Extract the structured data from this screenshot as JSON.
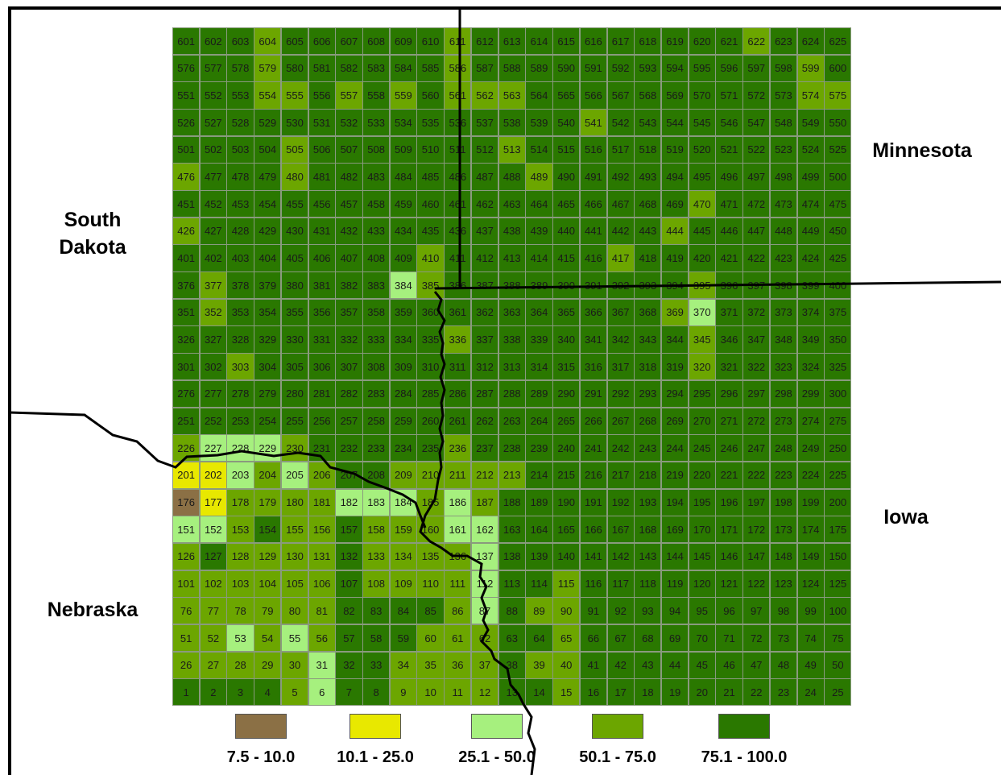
{
  "states": {
    "south_dakota": "South\nDakota",
    "minnesota": "Minnesota",
    "iowa": "Iowa",
    "nebraska": "Nebraska"
  },
  "legend": [
    {
      "label": "7.5 - 10.0",
      "color": "#8b7045"
    },
    {
      "label": "10.1 - 25.0",
      "color": "#e8e800"
    },
    {
      "label": "25.1 - 50.0",
      "color": "#a6f07e"
    },
    {
      "label": "50.1 - 75.0",
      "color": "#6ca600"
    },
    {
      "label": "75.1 - 100.0",
      "color": "#2a7800"
    }
  ],
  "grid": {
    "columns": 25,
    "rows": 25,
    "default_class": 4,
    "class_overrides": {
      "604": 3,
      "611": 3,
      "622": 3,
      "579": 3,
      "586": 3,
      "599": 3,
      "554": 3,
      "555": 3,
      "557": 3,
      "559": 3,
      "561": 3,
      "562": 3,
      "563": 3,
      "574": 3,
      "575": 3,
      "541": 3,
      "513": 3,
      "505": 3,
      "476": 3,
      "480": 3,
      "489": 3,
      "470": 3,
      "426": 3,
      "444": 3,
      "410": 3,
      "417": 3,
      "377": 3,
      "384": 2,
      "385": 3,
      "395": 3,
      "352": 3,
      "369": 3,
      "370": 2,
      "345": 3,
      "336": 3,
      "303": 3,
      "320": 3,
      "226": 3,
      "227": 2,
      "228": 2,
      "229": 2,
      "230": 3,
      "236": 3,
      "201": 1,
      "202": 1,
      "203": 2,
      "204": 3,
      "205": 2,
      "206": 3,
      "209": 3,
      "210": 3,
      "211": 3,
      "212": 3,
      "213": 3,
      "176": 0,
      "177": 1,
      "178": 3,
      "179": 3,
      "180": 3,
      "181": 3,
      "182": 2,
      "183": 2,
      "184": 2,
      "185": 3,
      "186": 2,
      "187": 3,
      "151": 2,
      "152": 2,
      "153": 3,
      "155": 3,
      "156": 3,
      "158": 3,
      "159": 3,
      "160": 3,
      "161": 2,
      "162": 2,
      "126": 3,
      "128": 3,
      "129": 3,
      "130": 3,
      "131": 3,
      "133": 3,
      "134": 3,
      "135": 3,
      "136": 3,
      "137": 2,
      "101": 3,
      "102": 3,
      "103": 3,
      "104": 3,
      "105": 3,
      "106": 3,
      "108": 3,
      "109": 3,
      "110": 3,
      "111": 3,
      "112": 2,
      "115": 3,
      "76": 3,
      "77": 3,
      "78": 3,
      "79": 3,
      "80": 3,
      "81": 3,
      "86": 3,
      "87": 2,
      "89": 3,
      "90": 3,
      "51": 3,
      "52": 3,
      "53": 2,
      "54": 3,
      "55": 2,
      "56": 3,
      "60": 3,
      "61": 3,
      "62": 3,
      "65": 3,
      "26": 3,
      "27": 3,
      "28": 3,
      "29": 3,
      "30": 3,
      "31": 2,
      "34": 3,
      "35": 3,
      "36": 3,
      "37": 3,
      "39": 3,
      "40": 3,
      "5": 3,
      "6": 2,
      "9": 3,
      "10": 3,
      "11": 3,
      "12": 3,
      "15": 3
    }
  }
}
